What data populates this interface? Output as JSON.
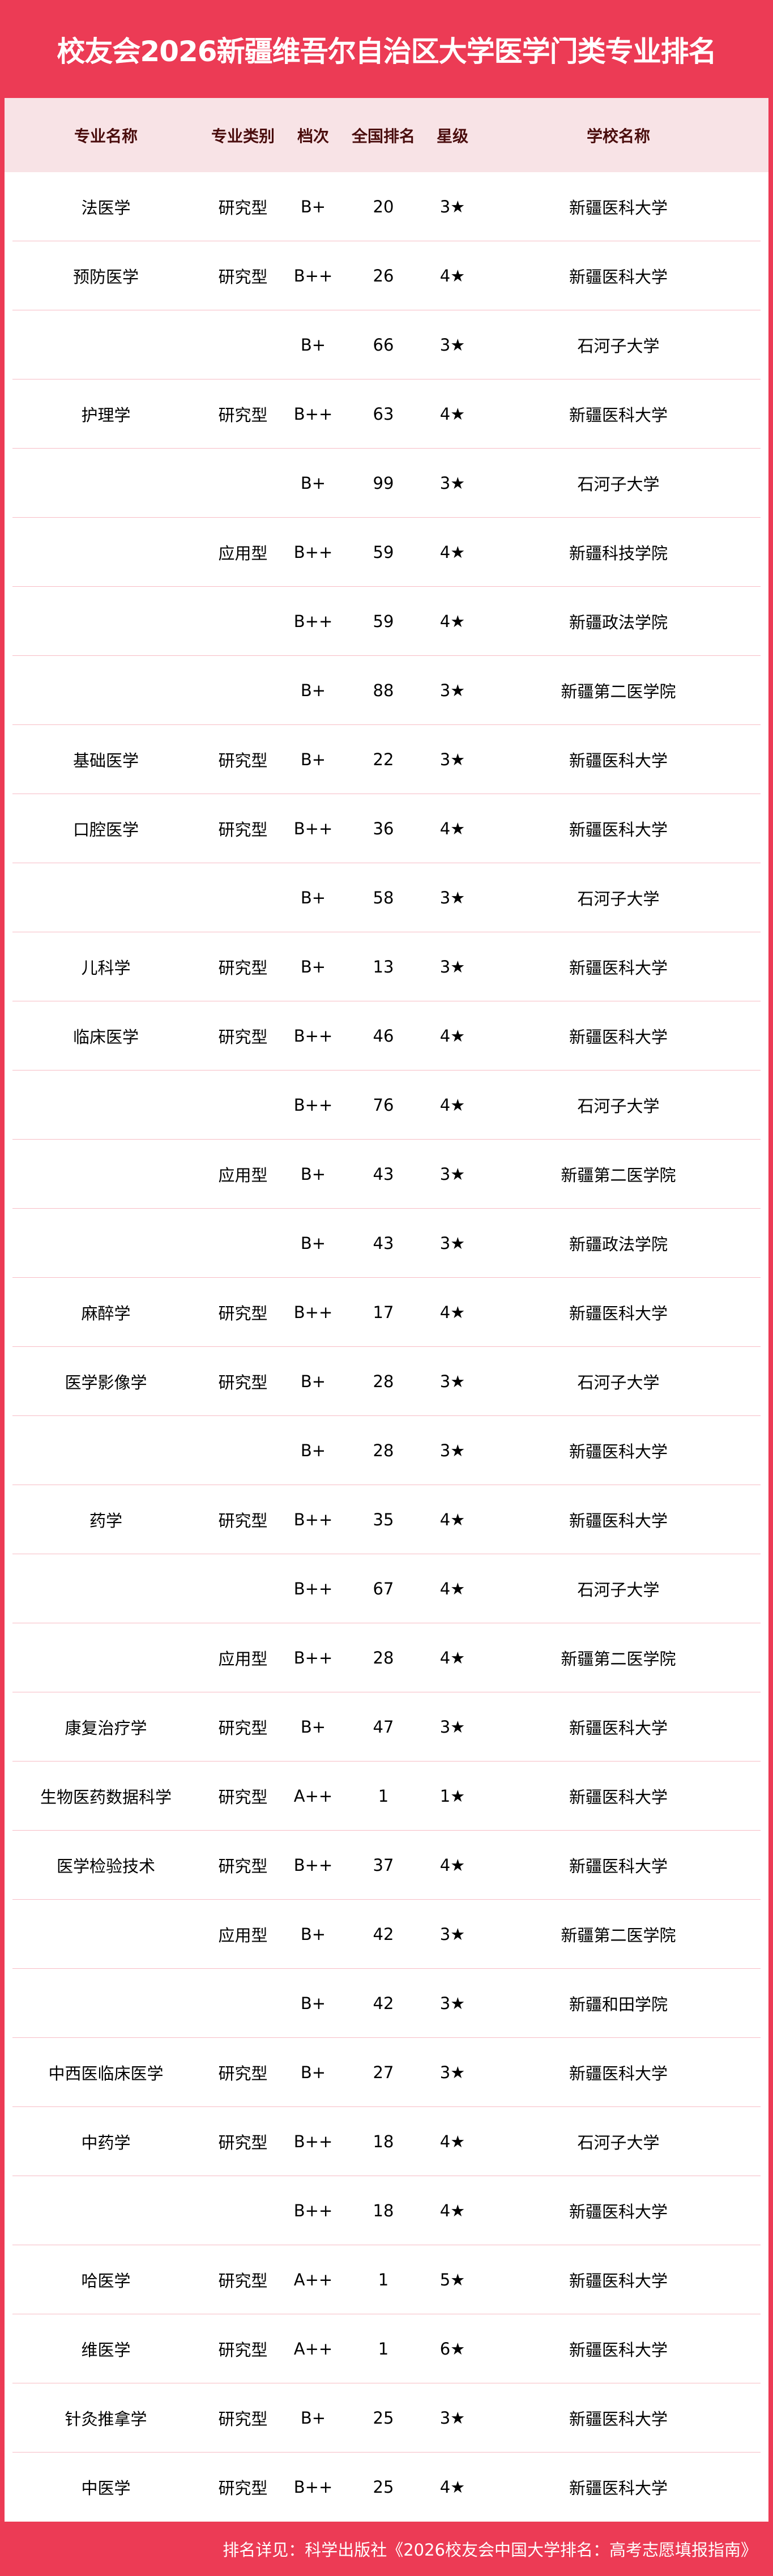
{
  "title": "校友会2026新疆维吾尔自治区大学医学门类专业排名",
  "colors": {
    "accent": "#ec3b55",
    "header_bg": "#f8e3e6",
    "header_text": "#4a0d0d",
    "divider": "#f7bcc5"
  },
  "table": {
    "headers": [
      "专业名称",
      "专业类别",
      "档次",
      "全国排名",
      "星级",
      "学校名称"
    ],
    "rows": [
      [
        "法医学",
        "研究型",
        "B+",
        "20",
        "3★",
        "新疆医科大学"
      ],
      [
        "预防医学",
        "研究型",
        "B++",
        "26",
        "4★",
        "新疆医科大学"
      ],
      [
        "",
        "",
        "B+",
        "66",
        "3★",
        "石河子大学"
      ],
      [
        "护理学",
        "研究型",
        "B++",
        "63",
        "4★",
        "新疆医科大学"
      ],
      [
        "",
        "",
        "B+",
        "99",
        "3★",
        "石河子大学"
      ],
      [
        "",
        "应用型",
        "B++",
        "59",
        "4★",
        "新疆科技学院"
      ],
      [
        "",
        "",
        "B++",
        "59",
        "4★",
        "新疆政法学院"
      ],
      [
        "",
        "",
        "B+",
        "88",
        "3★",
        "新疆第二医学院"
      ],
      [
        "基础医学",
        "研究型",
        "B+",
        "22",
        "3★",
        "新疆医科大学"
      ],
      [
        "口腔医学",
        "研究型",
        "B++",
        "36",
        "4★",
        "新疆医科大学"
      ],
      [
        "",
        "",
        "B+",
        "58",
        "3★",
        "石河子大学"
      ],
      [
        "儿科学",
        "研究型",
        "B+",
        "13",
        "3★",
        "新疆医科大学"
      ],
      [
        "临床医学",
        "研究型",
        "B++",
        "46",
        "4★",
        "新疆医科大学"
      ],
      [
        "",
        "",
        "B++",
        "76",
        "4★",
        "石河子大学"
      ],
      [
        "",
        "应用型",
        "B+",
        "43",
        "3★",
        "新疆第二医学院"
      ],
      [
        "",
        "",
        "B+",
        "43",
        "3★",
        "新疆政法学院"
      ],
      [
        "麻醉学",
        "研究型",
        "B++",
        "17",
        "4★",
        "新疆医科大学"
      ],
      [
        "医学影像学",
        "研究型",
        "B+",
        "28",
        "3★",
        "石河子大学"
      ],
      [
        "",
        "",
        "B+",
        "28",
        "3★",
        "新疆医科大学"
      ],
      [
        "药学",
        "研究型",
        "B++",
        "35",
        "4★",
        "新疆医科大学"
      ],
      [
        "",
        "",
        "B++",
        "67",
        "4★",
        "石河子大学"
      ],
      [
        "",
        "应用型",
        "B++",
        "28",
        "4★",
        "新疆第二医学院"
      ],
      [
        "康复治疗学",
        "研究型",
        "B+",
        "47",
        "3★",
        "新疆医科大学"
      ],
      [
        "生物医药数据科学",
        "研究型",
        "A++",
        "1",
        "1★",
        "新疆医科大学"
      ],
      [
        "医学检验技术",
        "研究型",
        "B++",
        "37",
        "4★",
        "新疆医科大学"
      ],
      [
        "",
        "应用型",
        "B+",
        "42",
        "3★",
        "新疆第二医学院"
      ],
      [
        "",
        "",
        "B+",
        "42",
        "3★",
        "新疆和田学院"
      ],
      [
        "中西医临床医学",
        "研究型",
        "B+",
        "27",
        "3★",
        "新疆医科大学"
      ],
      [
        "中药学",
        "研究型",
        "B++",
        "18",
        "4★",
        "石河子大学"
      ],
      [
        "",
        "",
        "B++",
        "18",
        "4★",
        "新疆医科大学"
      ],
      [
        "哈医学",
        "研究型",
        "A++",
        "1",
        "5★",
        "新疆医科大学"
      ],
      [
        "维医学",
        "研究型",
        "A++",
        "1",
        "6★",
        "新疆医科大学"
      ],
      [
        "针灸推拿学",
        "研究型",
        "B+",
        "25",
        "3★",
        "新疆医科大学"
      ],
      [
        "中医学",
        "研究型",
        "B++",
        "25",
        "4★",
        "新疆医科大学"
      ]
    ]
  },
  "footer": "排名详见：科学出版社《2026校友会中国大学排名：高考志愿填报指南》"
}
